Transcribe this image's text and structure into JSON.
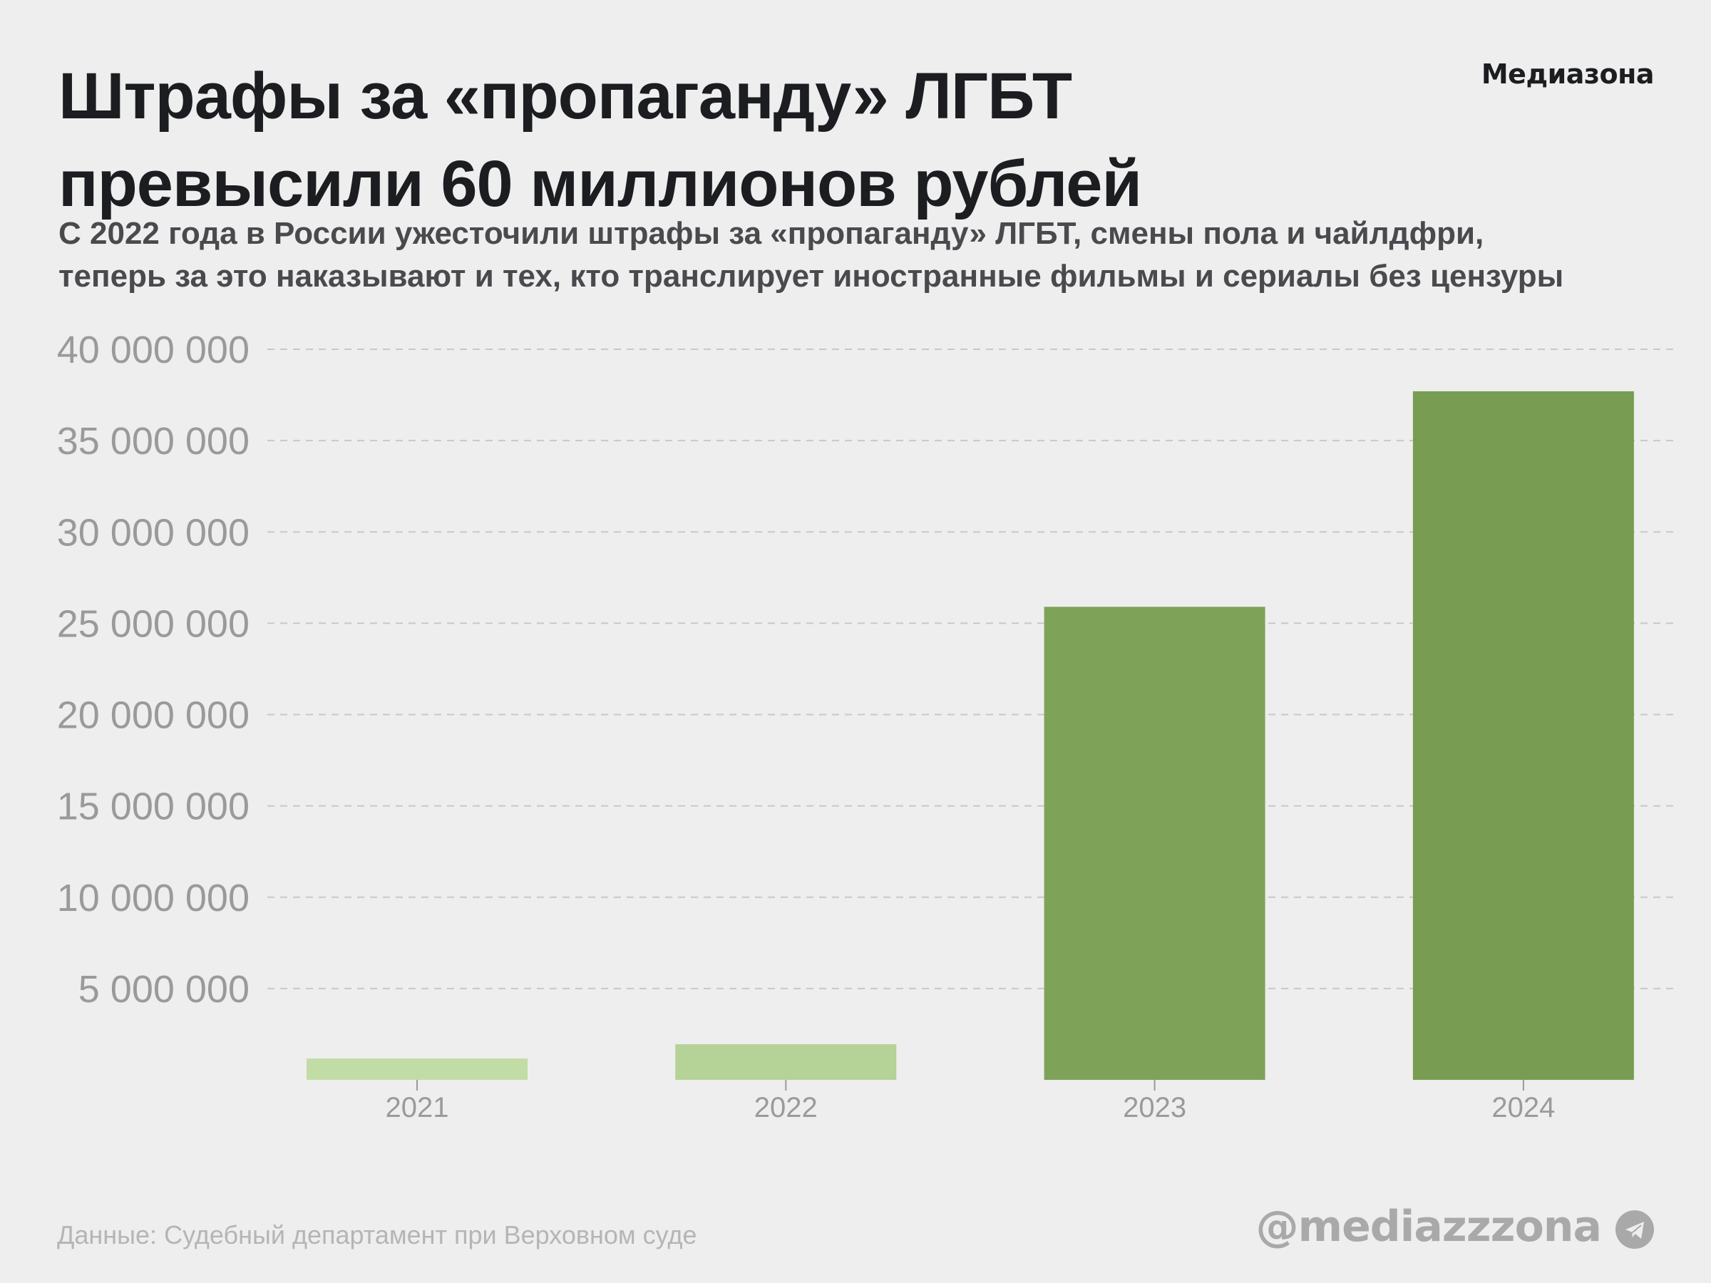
{
  "header": {
    "title_lines": [
      "Штрафы за «пропаганду» ЛГБТ",
      "превысили 60 миллионов рублей"
    ],
    "logo": "Медиазона",
    "subtitle_lines": [
      "С 2022 года в России ужесточили штрафы за «пропаганду» ЛГБТ, смены пола и чайлдфри,",
      "теперь за это наказывают и тех, кто транслирует иностранные фильмы и сериалы без цензуры"
    ]
  },
  "footer": {
    "source": "Данные: Судебный департамент при Верховном суде",
    "handle": "@mediazzzona",
    "handle_icon": "telegram-icon"
  },
  "colors": {
    "background": "#eeeeee",
    "bars": [
      "#c2dca6",
      "#b5d297",
      "#7fa259",
      "#789d52"
    ]
  },
  "chart_data": {
    "type": "bar",
    "title": "Штрафы за «пропаганду» ЛГБТ превысили 60 миллионов рублей",
    "xlabel": "",
    "ylabel": "",
    "categories": [
      "2021",
      "2022",
      "2023",
      "2024"
    ],
    "values": [
      1170000,
      1950000,
      25900000,
      37700000
    ],
    "ylim": [
      0,
      40000000
    ],
    "yticks": [
      5000000,
      10000000,
      15000000,
      20000000,
      25000000,
      30000000,
      35000000,
      40000000
    ],
    "ytick_labels": [
      "5 000 000",
      "10 000 000",
      "15 000 000",
      "20 000 000",
      "25 000 000",
      "30 000 000",
      "35 000 000",
      "40 000 000"
    ],
    "grid": true,
    "legend": "none"
  }
}
